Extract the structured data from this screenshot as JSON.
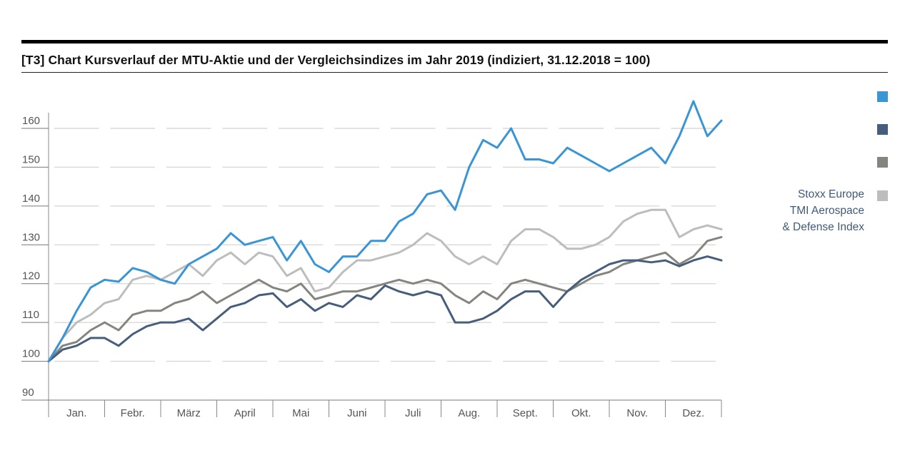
{
  "title": "[T3] Chart Kursverlauf der MTU-Aktie und der Vergleichsindizes im Jahr 2019 (indiziert, 31.12.2018 = 100)",
  "chart_data": {
    "type": "line",
    "title": "[T3] Chart Kursverlauf der MTU-Aktie und der Vergleichsindizes im Jahr 2019 (indiziert, 31.12.2018 = 100)",
    "xlabel": "",
    "ylabel": "",
    "ylim": [
      90,
      160
    ],
    "yticks": [
      90,
      100,
      110,
      120,
      130,
      140,
      150,
      160
    ],
    "categories": [
      "Jan.",
      "Febr.",
      "März",
      "April",
      "Mai",
      "Juni",
      "Juli",
      "Aug.",
      "Sept.",
      "Okt.",
      "Nov.",
      "Dez."
    ],
    "x_points_per_month": 4,
    "grid": true,
    "legend_position": "right",
    "series": [
      {
        "name": "",
        "color": "#3a95d5",
        "values": [
          100,
          106,
          113,
          119,
          121,
          120.5,
          124,
          123,
          121,
          120,
          125,
          127,
          129,
          133,
          130,
          131,
          132,
          126,
          131,
          125,
          123,
          127,
          127,
          131,
          131,
          136,
          138,
          143,
          144,
          139,
          150,
          157,
          155,
          160,
          152,
          152,
          151,
          155,
          153,
          151,
          149,
          151,
          153,
          155,
          151,
          158,
          167,
          158,
          162
        ]
      },
      {
        "name": "",
        "color": "#465e7b",
        "values": [
          100,
          103,
          104,
          106,
          106,
          104,
          107,
          109,
          110,
          110,
          111,
          108,
          111,
          114,
          115,
          117,
          117.5,
          114,
          116,
          113,
          115,
          114,
          117,
          116,
          119.5,
          118,
          117,
          118,
          117,
          110,
          110,
          111,
          113,
          116,
          118,
          118,
          114,
          118,
          121,
          123,
          125,
          126,
          126,
          125.5,
          126,
          124.5,
          126,
          127,
          126
        ]
      },
      {
        "name": "",
        "color": "#858580",
        "values": [
          100,
          104,
          105,
          108,
          110,
          108,
          112,
          113,
          113,
          115,
          116,
          118,
          115,
          117,
          119,
          121,
          119,
          118,
          120,
          116,
          117,
          118,
          118,
          119,
          120,
          121,
          120,
          121,
          120,
          117,
          115,
          118,
          116,
          120,
          121,
          120,
          119,
          118,
          120,
          122,
          123,
          125,
          126,
          127,
          128,
          125,
          127,
          131,
          132
        ]
      },
      {
        "name": "Stoxx Europe TMI Aerospace & Defense Index",
        "color": "#bdbdbd",
        "values": [
          100,
          106,
          110,
          112,
          115,
          116,
          121,
          122,
          121,
          123,
          125,
          122,
          126,
          128,
          125,
          128,
          127,
          122,
          124,
          118,
          119,
          123,
          126,
          126,
          127,
          128,
          130,
          133,
          131,
          127,
          125,
          127,
          125,
          131,
          134,
          134,
          132,
          129,
          129,
          130,
          132,
          136,
          138,
          139,
          139,
          132,
          134,
          135,
          134
        ]
      }
    ]
  },
  "legend": {
    "items": [
      {
        "label": "",
        "color": "#3a95d5"
      },
      {
        "label": "",
        "color": "#465e7b"
      },
      {
        "label": "",
        "color": "#858580"
      },
      {
        "label_lines": [
          "Stoxx Europe",
          "TMI Aerospace",
          "& Defense Index"
        ],
        "color": "#bdbdbd"
      }
    ]
  }
}
